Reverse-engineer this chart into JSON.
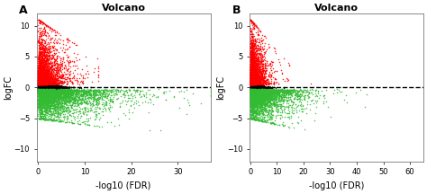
{
  "title": "Volcano",
  "xlabel": "-log10 (FDR)",
  "ylabel": "logFC",
  "plot_A": {
    "xlim": [
      -0.3,
      37
    ],
    "ylim": [
      -12,
      12
    ],
    "xticks": [
      0,
      10,
      20,
      30
    ],
    "yticks": [
      -10,
      -5,
      0,
      5,
      10
    ],
    "xmax": 37,
    "green_xmax": 37,
    "seed": 42
  },
  "plot_B": {
    "xlim": [
      -0.3,
      65
    ],
    "ylim": [
      -12,
      12
    ],
    "xticks": [
      0,
      10,
      20,
      30,
      40,
      50,
      60
    ],
    "yticks": [
      -10,
      -5,
      0,
      5,
      10
    ],
    "xmax": 65,
    "green_xmax": 62,
    "seed": 77
  },
  "dot_size": 1.2,
  "black_color": "#000000",
  "red_color": "#FF0000",
  "green_color": "#33BB33",
  "bg_color": "#FFFFFF",
  "tick_fontsize": 6,
  "label_fontsize": 7,
  "title_fontsize": 8
}
